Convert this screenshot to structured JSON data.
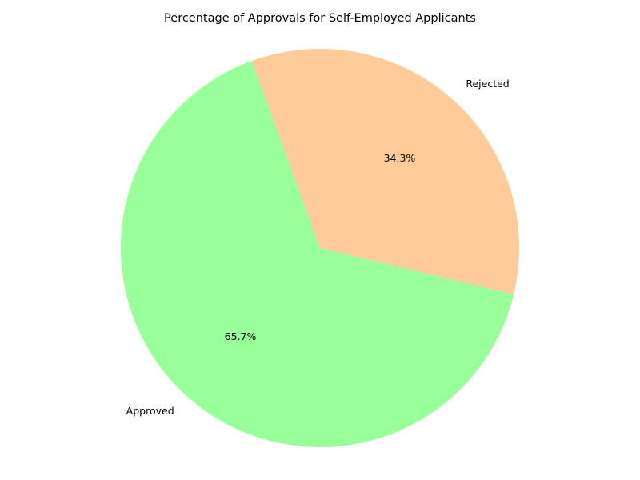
{
  "chart_data": {
    "type": "pie",
    "title": "Percentage of Approvals for Self-Employed Applicants",
    "slices": [
      {
        "label": "Approved",
        "value": 65.7,
        "pct_label": "65.7%",
        "color": "#99ff99"
      },
      {
        "label": "Rejected",
        "value": 34.3,
        "pct_label": "34.3%",
        "color": "#ffcc99"
      }
    ],
    "start_angle_deg": 110,
    "direction": "counterclockwise"
  }
}
